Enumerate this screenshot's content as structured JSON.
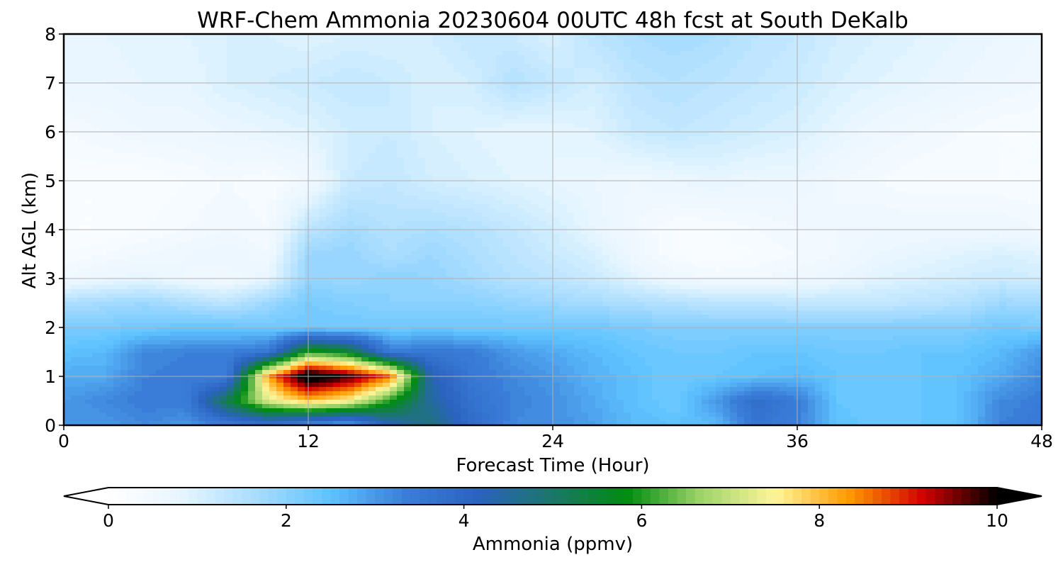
{
  "chart_data": {
    "type": "heatmap",
    "title": "WRF-Chem Ammonia  20230604 00UTC 48h fcst at South DeKalb",
    "xlabel": "Forecast Time (Hour)",
    "ylabel": "Alt AGL (km)",
    "xlim": [
      0,
      48
    ],
    "ylim": [
      0,
      8
    ],
    "xticks": [
      "0",
      "12",
      "24",
      "36",
      "48"
    ],
    "yticks": [
      "0",
      "1",
      "2",
      "3",
      "4",
      "5",
      "6",
      "7",
      "8"
    ],
    "grid": true,
    "x_hours": [
      0,
      2,
      4,
      6,
      8,
      10,
      12,
      14,
      16,
      18,
      20,
      22,
      24,
      26,
      28,
      30,
      32,
      34,
      36,
      38,
      40,
      42,
      44,
      46,
      48
    ],
    "y_km": [
      0,
      0.5,
      1,
      1.5,
      2,
      2.5,
      3,
      3.5,
      4,
      5,
      6,
      7,
      8
    ],
    "z_ppmv": [
      [
        3.0,
        3.0,
        3.2,
        3.0,
        3.4,
        3.6,
        3.0,
        2.8,
        4.2,
        4.8,
        3.9,
        3.2,
        3.1,
        2.9,
        2.6,
        2.5,
        2.6,
        3.6,
        3.3,
        2.5,
        2.3,
        2.4,
        2.5,
        3.3,
        3.5
      ],
      [
        3.0,
        3.2,
        3.4,
        3.4,
        5.3,
        7.2,
        8.0,
        7.5,
        6.0,
        4.5,
        3.7,
        3.3,
        3.1,
        2.8,
        2.5,
        2.3,
        3.0,
        3.8,
        3.4,
        2.4,
        2.3,
        2.4,
        2.5,
        3.2,
        3.4
      ],
      [
        2.8,
        2.8,
        3.3,
        3.4,
        3.3,
        8.2,
        10.5,
        9.8,
        8.6,
        4.3,
        3.5,
        3.2,
        3.0,
        2.7,
        2.5,
        2.3,
        2.4,
        2.5,
        2.6,
        2.4,
        2.3,
        2.4,
        2.5,
        2.8,
        3.2
      ],
      [
        2.5,
        2.6,
        3.2,
        3.3,
        3.3,
        3.5,
        6.0,
        5.5,
        3.4,
        3.5,
        3.4,
        3.0,
        2.8,
        2.6,
        2.4,
        2.3,
        2.3,
        2.4,
        2.4,
        2.3,
        2.3,
        2.4,
        2.4,
        2.6,
        3.0
      ],
      [
        2.2,
        2.2,
        2.3,
        2.4,
        2.4,
        2.3,
        2.3,
        2.3,
        2.3,
        2.3,
        2.3,
        2.3,
        2.3,
        2.3,
        2.2,
        2.1,
        2.1,
        2.1,
        2.1,
        2.1,
        2.1,
        2.1,
        2.1,
        2.3,
        2.2
      ],
      [
        1.6,
        1.7,
        1.8,
        1.6,
        1.4,
        1.8,
        2.2,
        2.1,
        2.0,
        2.0,
        2.0,
        1.9,
        1.8,
        1.7,
        1.6,
        1.5,
        1.4,
        1.4,
        1.3,
        1.3,
        1.3,
        1.4,
        1.5,
        1.8,
        1.7
      ],
      [
        0.5,
        0.7,
        0.8,
        0.6,
        0.5,
        0.8,
        1.9,
        1.8,
        2.0,
        1.9,
        1.7,
        1.5,
        1.4,
        1.2,
        0.9,
        0.6,
        0.5,
        0.5,
        0.6,
        0.7,
        0.9,
        1.0,
        1.1,
        1.2,
        1.1
      ],
      [
        0.3,
        0.4,
        0.5,
        0.6,
        0.7,
        0.5,
        1.8,
        1.9,
        1.6,
        1.8,
        1.6,
        1.4,
        1.2,
        1.0,
        0.6,
        0.3,
        0.2,
        0.3,
        0.4,
        0.5,
        0.7,
        0.8,
        0.9,
        1.0,
        0.9
      ],
      [
        0.2,
        0.2,
        0.3,
        0.4,
        0.5,
        0.4,
        1.4,
        1.7,
        1.5,
        1.6,
        1.5,
        1.3,
        1.1,
        0.8,
        0.5,
        0.3,
        0.3,
        0.4,
        0.5,
        0.5,
        0.6,
        0.6,
        0.6,
        0.6,
        0.5
      ],
      [
        0.2,
        0.2,
        0.2,
        0.3,
        0.4,
        0.3,
        0.5,
        1.2,
        1.3,
        1.1,
        1.0,
        0.9,
        0.8,
        0.7,
        0.6,
        0.7,
        0.8,
        0.7,
        0.7,
        0.5,
        0.4,
        0.3,
        0.3,
        0.3,
        0.3
      ],
      [
        0.4,
        0.5,
        0.6,
        0.6,
        0.7,
        0.8,
        0.9,
        1.1,
        1.2,
        1.0,
        0.9,
        0.8,
        0.8,
        0.9,
        1.2,
        1.3,
        1.2,
        1.1,
        1.0,
        0.8,
        0.6,
        0.5,
        0.4,
        0.3,
        0.3
      ],
      [
        0.7,
        0.7,
        0.8,
        0.8,
        1.0,
        1.1,
        1.2,
        1.3,
        1.2,
        1.0,
        1.1,
        1.5,
        1.3,
        1.1,
        1.4,
        1.5,
        1.4,
        1.3,
        1.2,
        1.0,
        0.9,
        0.8,
        0.7,
        0.6,
        0.5
      ],
      [
        0.8,
        0.8,
        0.9,
        0.9,
        1.0,
        1.0,
        0.9,
        1.0,
        1.0,
        1.1,
        1.3,
        1.2,
        1.0,
        1.4,
        1.6,
        1.7,
        1.6,
        1.4,
        1.3,
        1.1,
        1.0,
        0.9,
        0.8,
        0.7,
        0.6
      ]
    ],
    "colorbar": {
      "label": "Ammonia  (ppmv)",
      "range": [
        0,
        10
      ],
      "ticks": [
        "0",
        "2",
        "4",
        "6",
        "8",
        "10"
      ],
      "extend": "both",
      "levels": 100
    },
    "colormap": [
      "#ffffff",
      "#e6f5ff",
      "#a8dcff",
      "#5ec2ff",
      "#3a7ed8",
      "#2b62c0",
      "#1b7768",
      "#008c10",
      "#9ed46a",
      "#fff59a",
      "#ff9a00",
      "#d20000",
      "#000000"
    ]
  }
}
